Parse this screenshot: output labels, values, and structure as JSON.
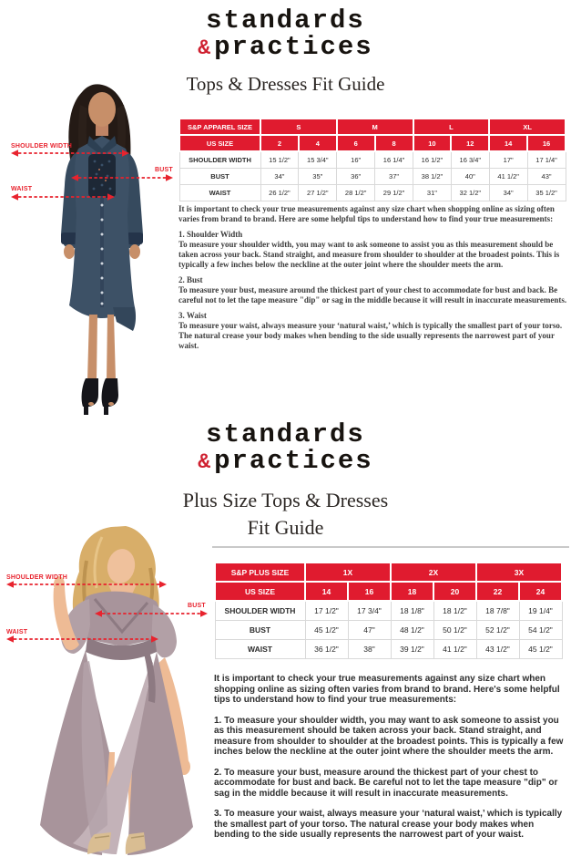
{
  "brand": {
    "word1": "standards",
    "amp": "&",
    "word2": "practices"
  },
  "colors": {
    "table_header_red": "#e01b2f",
    "arrow_red": "#e8232e",
    "logo_amp_red": "#cf2030"
  },
  "section1": {
    "title": "Tops & Dresses Fit Guide",
    "annotations": {
      "shoulder": "SHOULDER WIDTH",
      "bust": "BUST",
      "waist": "WAIST"
    },
    "table": {
      "size_row_label": "S&P APPAREL SIZE",
      "size_groups": [
        {
          "label": "S",
          "span": 2
        },
        {
          "label": "M",
          "span": 2
        },
        {
          "label": "L",
          "span": 2
        },
        {
          "label": "XL",
          "span": 2
        }
      ],
      "us_row_label": "US SIZE",
      "us_sizes": [
        "2",
        "4",
        "6",
        "8",
        "10",
        "12",
        "14",
        "16"
      ],
      "rows": [
        {
          "label": "SHOULDER WIDTH",
          "values": [
            "15 1/2\"",
            "15 3/4\"",
            "16\"",
            "16 1/4\"",
            "16 1/2\"",
            "16 3/4\"",
            "17\"",
            "17 1/4\""
          ]
        },
        {
          "label": "BUST",
          "values": [
            "34\"",
            "35\"",
            "36\"",
            "37\"",
            "38 1/2\"",
            "40\"",
            "41 1/2\"",
            "43\""
          ]
        },
        {
          "label": "WAIST",
          "values": [
            "26 1/2\"",
            "27 1/2\"",
            "28 1/2\"",
            "29 1/2\"",
            "31\"",
            "32 1/2\"",
            "34\"",
            "35 1/2\""
          ]
        }
      ]
    },
    "intro": "It is important to check your true measurements against any size chart when shopping online as sizing often varies from brand to brand. Here are some helpful tips to understand how to find your true measurements:",
    "tips": [
      {
        "heading": "1. Shoulder Width",
        "body": "To measure your shoulder width, you may want to ask someone to assist you as this measurement should be taken across your back. Stand straight, and measure from shoulder to shoulder at the broadest points. This is typically a few inches below the neckline at the outer joint where the shoulder meets the arm."
      },
      {
        "heading": "2. Bust",
        "body": "To measure your bust, measure around the thickest part of your chest to accommodate for bust and back. Be careful not to let the tape measure \"dip\" or sag in the middle because it will result in inaccurate measurements."
      },
      {
        "heading": "3. Waist",
        "body": "To measure your waist, always measure your ‘natural waist,’ which is typically the smallest part of your torso.  The natural crease your body makes when bending to the side usually represents the narrowest part of your waist."
      }
    ]
  },
  "section2": {
    "title_line1": "Plus Size Tops & Dresses",
    "title_line2": "Fit Guide",
    "annotations": {
      "shoulder": "SHOULDER WIDTH",
      "bust": "BUST",
      "waist": "WAIST"
    },
    "table": {
      "size_row_label": "S&P PLUS SIZE",
      "size_groups": [
        {
          "label": "1X",
          "span": 2
        },
        {
          "label": "2X",
          "span": 2
        },
        {
          "label": "3X",
          "span": 2
        }
      ],
      "us_row_label": "US SIZE",
      "us_sizes": [
        "14",
        "16",
        "18",
        "20",
        "22",
        "24"
      ],
      "rows": [
        {
          "label": "SHOULDER WIDTH",
          "values": [
            "17 1/2\"",
            "17 3/4\"",
            "18 1/8\"",
            "18 1/2\"",
            "18 7/8\"",
            "19 1/4\""
          ]
        },
        {
          "label": "BUST",
          "values": [
            "45 1/2\"",
            "47\"",
            "48 1/2\"",
            "50 1/2\"",
            "52 1/2\"",
            "54 1/2\""
          ]
        },
        {
          "label": "WAIST",
          "values": [
            "36 1/2\"",
            "38\"",
            "39 1/2\"",
            "41 1/2\"",
            "43 1/2\"",
            "45 1/2\""
          ]
        }
      ]
    },
    "intro": "It is important to check your true measurements against any size chart when shopping online as sizing often varies from brand to brand. Here's some helpful tips to understand how to find your true measurements:",
    "tips": [
      "1. To measure your shoulder width, you may want to ask someone to assist you as this measurement should be taken across your back. Stand straight, and measure from shoulder to shoulder at the broadest points. This is typically a few inches below the neckline at the outer joint where the shoulder meets the arm.",
      "2. To measure your bust, measure around the thickest part of your chest to accommodate for bust and back. Be careful not to let the tape measure \"dip\" or sag in the middle because it will result in inaccurate measurements.",
      "3. To measure your waist, always measure your  ‘natural waist,’  which is typically the smallest part of your torso.  The natural crease your body makes when bending to the side usually represents the narrowest part of your waist."
    ]
  }
}
